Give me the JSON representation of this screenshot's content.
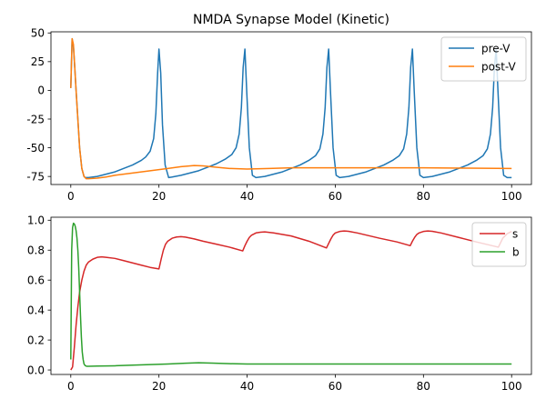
{
  "chart_data": [
    {
      "type": "line",
      "title": "NMDA Synapse Model (Kinetic)",
      "xlabel": "",
      "ylabel": "",
      "xlim": [
        -4.5,
        104.5
      ],
      "ylim": [
        -82,
        51
      ],
      "xticks": [
        0,
        20,
        40,
        60,
        80,
        100
      ],
      "yticks": [
        -75,
        -50,
        -25,
        0,
        25,
        50
      ],
      "grid": false,
      "legend_position": "top-right",
      "series": [
        {
          "name": "pre-V",
          "color": "#1f77b4",
          "x": [
            0,
            0.3,
            0.6,
            0.9,
            1.2,
            1.6,
            2.0,
            2.5,
            3.0,
            3.3,
            4,
            6,
            8,
            10,
            12,
            14,
            16,
            17,
            18,
            18.8,
            19.3,
            19.7,
            20.0,
            20.4,
            20.8,
            21.4,
            22.2,
            23,
            25,
            27,
            29,
            31,
            33,
            35,
            36.5,
            37.5,
            38.2,
            38.7,
            39.1,
            39.5,
            39.9,
            40.5,
            41.2,
            42,
            44,
            46,
            48,
            50,
            52,
            54,
            55.5,
            56.5,
            57.2,
            57.7,
            58.1,
            58.5,
            58.9,
            59.5,
            60.2,
            61,
            63,
            65,
            67,
            69,
            71,
            73,
            74.5,
            75.5,
            76.2,
            76.7,
            77.1,
            77.5,
            77.9,
            78.5,
            79.2,
            80,
            82,
            84,
            86,
            88,
            90,
            92,
            93.5,
            94.5,
            95.2,
            95.7,
            96.1,
            96.5,
            96.9,
            97.5,
            98.2,
            99,
            100
          ],
          "y": [
            2,
            45,
            38,
            20,
            0,
            -25,
            -50,
            -68,
            -75,
            -76,
            -76,
            -75,
            -73,
            -71,
            -68,
            -65,
            -61,
            -58,
            -53,
            -42,
            -20,
            15,
            36,
            15,
            -30,
            -65,
            -76,
            -75.5,
            -74,
            -72,
            -70,
            -67,
            -64,
            -60,
            -56,
            -50,
            -38,
            -15,
            20,
            36,
            0,
            -50,
            -74,
            -76,
            -75,
            -73,
            -71,
            -68,
            -65,
            -61,
            -57,
            -51,
            -38,
            -15,
            20,
            36,
            0,
            -50,
            -74,
            -76,
            -75,
            -73,
            -71,
            -68,
            -65,
            -61,
            -57,
            -51,
            -38,
            -15,
            20,
            36,
            0,
            -50,
            -74,
            -76,
            -75,
            -73,
            -71,
            -68,
            -65,
            -61,
            -57,
            -51,
            -38,
            -15,
            20,
            36,
            0,
            -50,
            -74,
            -76,
            -76
          ]
        },
        {
          "name": "post-V",
          "color": "#ff7f0e",
          "x": [
            0,
            0.3,
            0.6,
            0.9,
            1.2,
            1.6,
            2.0,
            2.5,
            3.0,
            3.5,
            4,
            6,
            8,
            10,
            14,
            18,
            22,
            25,
            28,
            30,
            33,
            36,
            40,
            45,
            50,
            60,
            70,
            80,
            90,
            100
          ],
          "y": [
            2,
            45,
            40,
            20,
            0,
            -25,
            -50,
            -68,
            -75,
            -77,
            -77,
            -76.5,
            -75.5,
            -74,
            -72,
            -70,
            -68,
            -66.5,
            -65.5,
            -65.8,
            -67,
            -68,
            -68.5,
            -68,
            -67.5,
            -67.5,
            -67.5,
            -67.5,
            -67.8,
            -68
          ]
        }
      ]
    },
    {
      "type": "line",
      "title": "",
      "xlabel": "",
      "ylabel": "",
      "xlim": [
        -4.5,
        104.5
      ],
      "ylim": [
        -0.03,
        1.02
      ],
      "xticks": [
        0,
        20,
        40,
        60,
        80,
        100
      ],
      "yticks": [
        0.0,
        0.2,
        0.4,
        0.6,
        0.8,
        1.0
      ],
      "grid": false,
      "legend_position": "top-right",
      "series": [
        {
          "name": "s",
          "color": "#d62728",
          "x": [
            0,
            0.4,
            0.8,
            1.2,
            1.6,
            2.0,
            2.5,
            3.0,
            3.5,
            4,
            5,
            6,
            7,
            8,
            10,
            12,
            14,
            16,
            18,
            20,
            20.5,
            21,
            21.5,
            22,
            23,
            24,
            25,
            26,
            28,
            30,
            33,
            36,
            39,
            39.5,
            40,
            40.5,
            41,
            42,
            43,
            44,
            46,
            50,
            54,
            58,
            58.5,
            59,
            59.5,
            60,
            61,
            62,
            63,
            65,
            70,
            74,
            77,
            77.5,
            78,
            78.5,
            79,
            80,
            81,
            82,
            84,
            88,
            92,
            97,
            97.5,
            98,
            99,
            100
          ],
          "y": [
            0,
            0.02,
            0.15,
            0.3,
            0.42,
            0.52,
            0.6,
            0.66,
            0.7,
            0.72,
            0.74,
            0.752,
            0.755,
            0.752,
            0.745,
            0.73,
            0.715,
            0.7,
            0.685,
            0.675,
            0.74,
            0.8,
            0.84,
            0.86,
            0.88,
            0.888,
            0.89,
            0.887,
            0.875,
            0.86,
            0.84,
            0.82,
            0.795,
            0.83,
            0.86,
            0.885,
            0.9,
            0.915,
            0.92,
            0.922,
            0.915,
            0.895,
            0.86,
            0.815,
            0.845,
            0.875,
            0.9,
            0.915,
            0.925,
            0.928,
            0.926,
            0.915,
            0.88,
            0.855,
            0.83,
            0.86,
            0.885,
            0.905,
            0.915,
            0.925,
            0.928,
            0.926,
            0.915,
            0.885,
            0.855,
            0.82,
            0.85,
            0.88,
            0.91,
            0.925
          ]
        },
        {
          "name": "b",
          "color": "#2ca02c",
          "x": [
            0,
            0.2,
            0.4,
            0.6,
            0.8,
            1.0,
            1.2,
            1.4,
            1.6,
            1.8,
            2.0,
            2.2,
            2.4,
            2.6,
            2.8,
            3.0,
            3.3,
            3.6,
            4,
            6,
            10,
            14,
            18,
            22,
            26,
            29,
            32,
            36,
            40,
            50,
            60,
            70,
            80,
            90,
            100
          ],
          "y": [
            0.07,
            0.8,
            0.95,
            0.98,
            0.975,
            0.96,
            0.93,
            0.88,
            0.8,
            0.68,
            0.52,
            0.36,
            0.22,
            0.12,
            0.07,
            0.04,
            0.028,
            0.025,
            0.025,
            0.026,
            0.028,
            0.032,
            0.036,
            0.04,
            0.045,
            0.048,
            0.046,
            0.042,
            0.04,
            0.04,
            0.04,
            0.04,
            0.04,
            0.04,
            0.04
          ]
        }
      ]
    }
  ]
}
